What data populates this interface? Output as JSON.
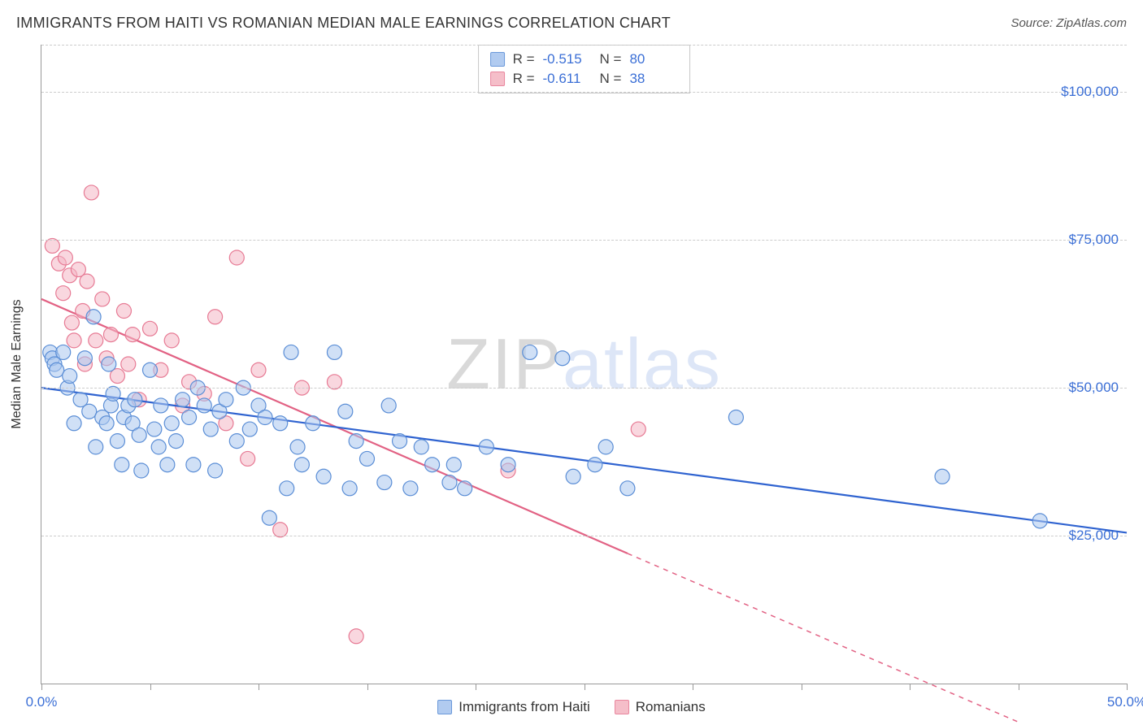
{
  "header": {
    "title": "IMMIGRANTS FROM HAITI VS ROMANIAN MEDIAN MALE EARNINGS CORRELATION CHART",
    "source": "Source: ZipAtlas.com"
  },
  "chart": {
    "type": "scatter",
    "y_axis_title": "Median Male Earnings",
    "xlim": [
      0,
      50
    ],
    "ylim": [
      0,
      108000
    ],
    "x_ticks": [
      0,
      5,
      10,
      15,
      20,
      25,
      30,
      35,
      40,
      45,
      50
    ],
    "x_tick_labels": {
      "0": "0.0%",
      "50": "50.0%"
    },
    "y_ticks": [
      25000,
      50000,
      75000,
      100000
    ],
    "y_tick_labels": [
      "$25,000",
      "$50,000",
      "$75,000",
      "$100,000"
    ],
    "grid_color": "#cccccc",
    "axis_color": "#999999",
    "background_color": "#ffffff",
    "tick_label_color": "#3b6fd6",
    "marker_radius": 9,
    "marker_stroke_width": 1.2,
    "trend_line_width": 2.2,
    "watermark": "ZIPatlas"
  },
  "series": [
    {
      "name": "Immigrants from Haiti",
      "fill": "#a9c6ef",
      "fill_opacity": 0.55,
      "stroke": "#5b8ed6",
      "r_value": "-0.515",
      "n_value": "80",
      "trend": {
        "x1": 0,
        "y1": 50000,
        "x2": 50,
        "y2": 25500,
        "color": "#2f63d0"
      },
      "points": [
        [
          0.4,
          56000
        ],
        [
          0.5,
          55000
        ],
        [
          0.6,
          54000
        ],
        [
          0.7,
          53000
        ],
        [
          1.0,
          56000
        ],
        [
          1.2,
          50000
        ],
        [
          1.3,
          52000
        ],
        [
          1.5,
          44000
        ],
        [
          1.8,
          48000
        ],
        [
          2.0,
          55000
        ],
        [
          2.2,
          46000
        ],
        [
          2.4,
          62000
        ],
        [
          2.5,
          40000
        ],
        [
          2.8,
          45000
        ],
        [
          3.0,
          44000
        ],
        [
          3.1,
          54000
        ],
        [
          3.2,
          47000
        ],
        [
          3.3,
          49000
        ],
        [
          3.5,
          41000
        ],
        [
          3.7,
          37000
        ],
        [
          3.8,
          45000
        ],
        [
          4.0,
          47000
        ],
        [
          4.2,
          44000
        ],
        [
          4.3,
          48000
        ],
        [
          4.5,
          42000
        ],
        [
          4.6,
          36000
        ],
        [
          5.0,
          53000
        ],
        [
          5.2,
          43000
        ],
        [
          5.4,
          40000
        ],
        [
          5.5,
          47000
        ],
        [
          5.8,
          37000
        ],
        [
          6.0,
          44000
        ],
        [
          6.2,
          41000
        ],
        [
          6.5,
          48000
        ],
        [
          6.8,
          45000
        ],
        [
          7.0,
          37000
        ],
        [
          7.2,
          50000
        ],
        [
          7.5,
          47000
        ],
        [
          7.8,
          43000
        ],
        [
          8.0,
          36000
        ],
        [
          8.2,
          46000
        ],
        [
          8.5,
          48000
        ],
        [
          9.0,
          41000
        ],
        [
          9.3,
          50000
        ],
        [
          9.6,
          43000
        ],
        [
          10.0,
          47000
        ],
        [
          10.3,
          45000
        ],
        [
          10.5,
          28000
        ],
        [
          11.0,
          44000
        ],
        [
          11.3,
          33000
        ],
        [
          11.5,
          56000
        ],
        [
          11.8,
          40000
        ],
        [
          12.0,
          37000
        ],
        [
          12.5,
          44000
        ],
        [
          13.0,
          35000
        ],
        [
          13.5,
          56000
        ],
        [
          14.0,
          46000
        ],
        [
          14.2,
          33000
        ],
        [
          14.5,
          41000
        ],
        [
          15.0,
          38000
        ],
        [
          15.8,
          34000
        ],
        [
          16.0,
          47000
        ],
        [
          16.5,
          41000
        ],
        [
          17.0,
          33000
        ],
        [
          17.5,
          40000
        ],
        [
          18.0,
          37000
        ],
        [
          18.8,
          34000
        ],
        [
          19.0,
          37000
        ],
        [
          19.5,
          33000
        ],
        [
          20.5,
          40000
        ],
        [
          21.5,
          37000
        ],
        [
          22.5,
          56000
        ],
        [
          24.0,
          55000
        ],
        [
          24.5,
          35000
        ],
        [
          25.5,
          37000
        ],
        [
          26.0,
          40000
        ],
        [
          27.0,
          33000
        ],
        [
          32.0,
          45000
        ],
        [
          41.5,
          35000
        ],
        [
          46.0,
          27500
        ]
      ]
    },
    {
      "name": "Romanians",
      "fill": "#f4b7c4",
      "fill_opacity": 0.55,
      "stroke": "#e77a94",
      "r_value": "-0.611",
      "n_value": "38",
      "trend": {
        "x1": 0,
        "y1": 65000,
        "x2": 27,
        "y2": 22000,
        "color": "#e26284",
        "extend_x2": 45,
        "extend_y2": -6500
      },
      "points": [
        [
          0.5,
          74000
        ],
        [
          0.8,
          71000
        ],
        [
          1.0,
          66000
        ],
        [
          1.1,
          72000
        ],
        [
          1.3,
          69000
        ],
        [
          1.4,
          61000
        ],
        [
          1.5,
          58000
        ],
        [
          1.7,
          70000
        ],
        [
          1.9,
          63000
        ],
        [
          2.0,
          54000
        ],
        [
          2.1,
          68000
        ],
        [
          2.3,
          83000
        ],
        [
          2.5,
          58000
        ],
        [
          2.8,
          65000
        ],
        [
          3.0,
          55000
        ],
        [
          3.2,
          59000
        ],
        [
          3.5,
          52000
        ],
        [
          3.8,
          63000
        ],
        [
          4.0,
          54000
        ],
        [
          4.2,
          59000
        ],
        [
          4.5,
          48000
        ],
        [
          5.0,
          60000
        ],
        [
          5.5,
          53000
        ],
        [
          6.0,
          58000
        ],
        [
          6.5,
          47000
        ],
        [
          6.8,
          51000
        ],
        [
          7.5,
          49000
        ],
        [
          8.0,
          62000
        ],
        [
          8.5,
          44000
        ],
        [
          9.0,
          72000
        ],
        [
          9.5,
          38000
        ],
        [
          10.0,
          53000
        ],
        [
          11.0,
          26000
        ],
        [
          12.0,
          50000
        ],
        [
          13.5,
          51000
        ],
        [
          14.5,
          8000
        ],
        [
          21.5,
          36000
        ],
        [
          27.5,
          43000
        ]
      ]
    }
  ],
  "footer_legend": {
    "series1_label": "Immigrants from Haiti",
    "series2_label": "Romanians"
  },
  "top_legend": {
    "r_label": "R =",
    "n_label": "N ="
  }
}
